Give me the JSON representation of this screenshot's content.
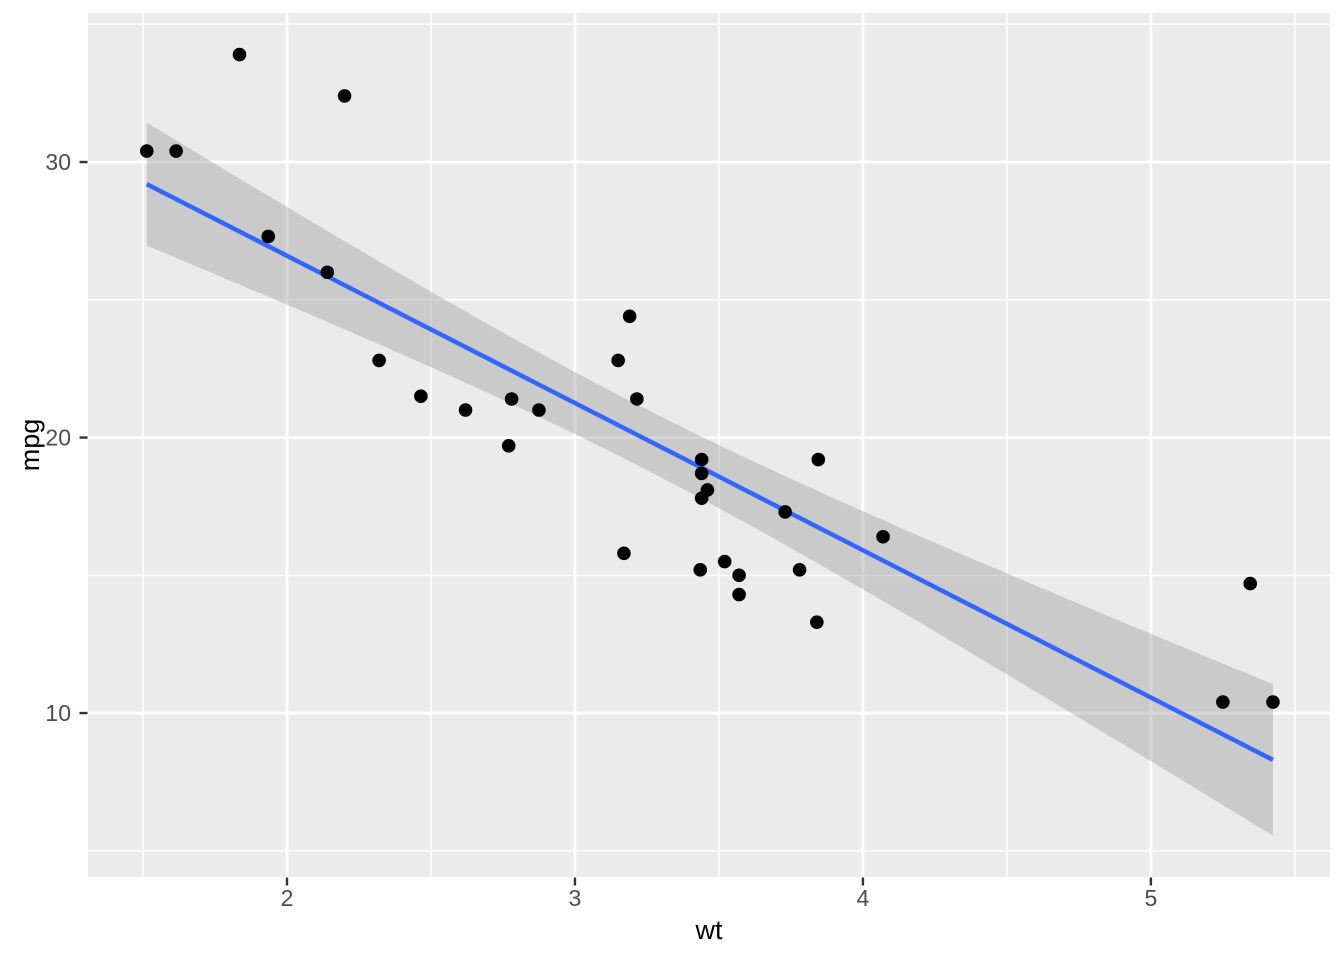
{
  "chart_data": {
    "type": "scatter",
    "xlabel": "wt",
    "ylabel": "mpg",
    "x_ticks": [
      2,
      3,
      4,
      5
    ],
    "y_ticks": [
      10,
      20,
      30
    ],
    "x_minor_ticks": [
      1.5,
      2.5,
      3.5,
      4.5,
      5.5
    ],
    "y_minor_ticks": [
      5,
      15,
      25,
      35
    ],
    "xlim": [
      1.309,
      5.622
    ],
    "ylim": [
      4.05,
      35.41
    ],
    "grid": "on",
    "legend": "none",
    "points": [
      [
        2.62,
        21.0
      ],
      [
        2.875,
        21.0
      ],
      [
        2.32,
        22.8
      ],
      [
        3.215,
        21.4
      ],
      [
        3.44,
        18.7
      ],
      [
        3.46,
        18.1
      ],
      [
        3.57,
        14.3
      ],
      [
        3.19,
        24.4
      ],
      [
        3.15,
        22.8
      ],
      [
        3.44,
        19.2
      ],
      [
        3.44,
        17.8
      ],
      [
        4.07,
        16.4
      ],
      [
        3.73,
        17.3
      ],
      [
        3.78,
        15.2
      ],
      [
        5.25,
        10.4
      ],
      [
        5.424,
        10.4
      ],
      [
        5.345,
        14.7
      ],
      [
        2.2,
        32.4
      ],
      [
        1.615,
        30.4
      ],
      [
        1.835,
        33.9
      ],
      [
        2.465,
        21.5
      ],
      [
        3.52,
        15.5
      ],
      [
        3.435,
        15.2
      ],
      [
        3.84,
        13.3
      ],
      [
        3.845,
        19.2
      ],
      [
        1.935,
        27.3
      ],
      [
        2.14,
        26.0
      ],
      [
        1.513,
        30.4
      ],
      [
        3.17,
        15.8
      ],
      [
        2.77,
        19.7
      ],
      [
        3.57,
        15.0
      ],
      [
        2.78,
        21.4
      ]
    ],
    "smooth": {
      "method": "lm",
      "x_range": [
        1.513,
        5.424
      ],
      "intercept": 37.285,
      "slope": -5.344,
      "ci": {
        "level": 0.95,
        "sigma": 3.046,
        "n": 32,
        "mean_x": 3.217,
        "sxx": 29.678,
        "t": 2.042
      }
    },
    "colors": {
      "background": "#FFFFFF",
      "panel": "#EBEBEB",
      "grid": "#FFFFFF",
      "ribbon": "rgba(153,153,153,0.4)",
      "line": "#3366FF",
      "point": "#000000",
      "tick_mark": "#333333",
      "tick_text": "#4D4D4D",
      "title_text": "#000000"
    }
  }
}
